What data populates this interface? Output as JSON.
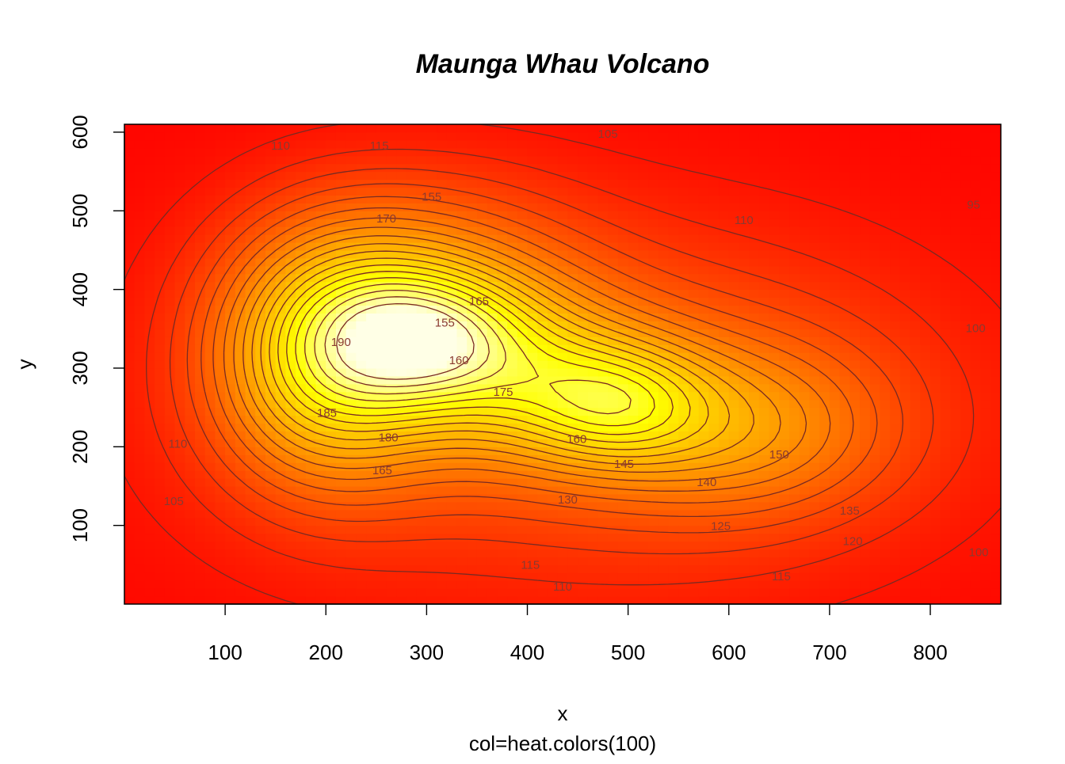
{
  "chart_data": {
    "type": "heatmap",
    "title": "Maunga Whau Volcano",
    "xlabel": "x",
    "ylabel": "y",
    "subtitle": "col=heat.colors(100)",
    "xlim": [
      0,
      870
    ],
    "ylim": [
      0,
      610
    ],
    "xticks": [
      100,
      200,
      300,
      400,
      500,
      600,
      700,
      800
    ],
    "yticks": [
      100,
      200,
      300,
      400,
      500,
      600
    ],
    "palette": [
      "#FF0000",
      "#FF4000",
      "#FF8000",
      "#FFB000",
      "#FFE000",
      "#FFFF20",
      "#FFFF80",
      "#FFFFE0"
    ],
    "z_range": [
      94,
      195
    ],
    "contour_labels": [
      {
        "text": "110",
        "x": 155,
        "y": 583
      },
      {
        "text": "115",
        "x": 253,
        "y": 583
      },
      {
        "text": "105",
        "x": 480,
        "y": 598
      },
      {
        "text": "155",
        "x": 305,
        "y": 518
      },
      {
        "text": "170",
        "x": 260,
        "y": 490
      },
      {
        "text": "110",
        "x": 615,
        "y": 488
      },
      {
        "text": "95",
        "x": 843,
        "y": 508
      },
      {
        "text": "165",
        "x": 352,
        "y": 385
      },
      {
        "text": "155",
        "x": 318,
        "y": 358
      },
      {
        "text": "190",
        "x": 215,
        "y": 333
      },
      {
        "text": "100",
        "x": 845,
        "y": 351
      },
      {
        "text": "160",
        "x": 332,
        "y": 310
      },
      {
        "text": "175",
        "x": 376,
        "y": 270
      },
      {
        "text": "185",
        "x": 201,
        "y": 243
      },
      {
        "text": "180",
        "x": 262,
        "y": 212
      },
      {
        "text": "160",
        "x": 449,
        "y": 210
      },
      {
        "text": "110",
        "x": 53,
        "y": 204
      },
      {
        "text": "150",
        "x": 650,
        "y": 190
      },
      {
        "text": "145",
        "x": 496,
        "y": 178
      },
      {
        "text": "165",
        "x": 256,
        "y": 170
      },
      {
        "text": "140",
        "x": 578,
        "y": 155
      },
      {
        "text": "130",
        "x": 440,
        "y": 133
      },
      {
        "text": "105",
        "x": 49,
        "y": 131
      },
      {
        "text": "135",
        "x": 720,
        "y": 119
      },
      {
        "text": "125",
        "x": 592,
        "y": 99
      },
      {
        "text": "120",
        "x": 723,
        "y": 80
      },
      {
        "text": "100",
        "x": 848,
        "y": 66
      },
      {
        "text": "115",
        "x": 403,
        "y": 50
      },
      {
        "text": "115",
        "x": 652,
        "y": 35
      },
      {
        "text": "110",
        "x": 435,
        "y": 22
      }
    ]
  }
}
